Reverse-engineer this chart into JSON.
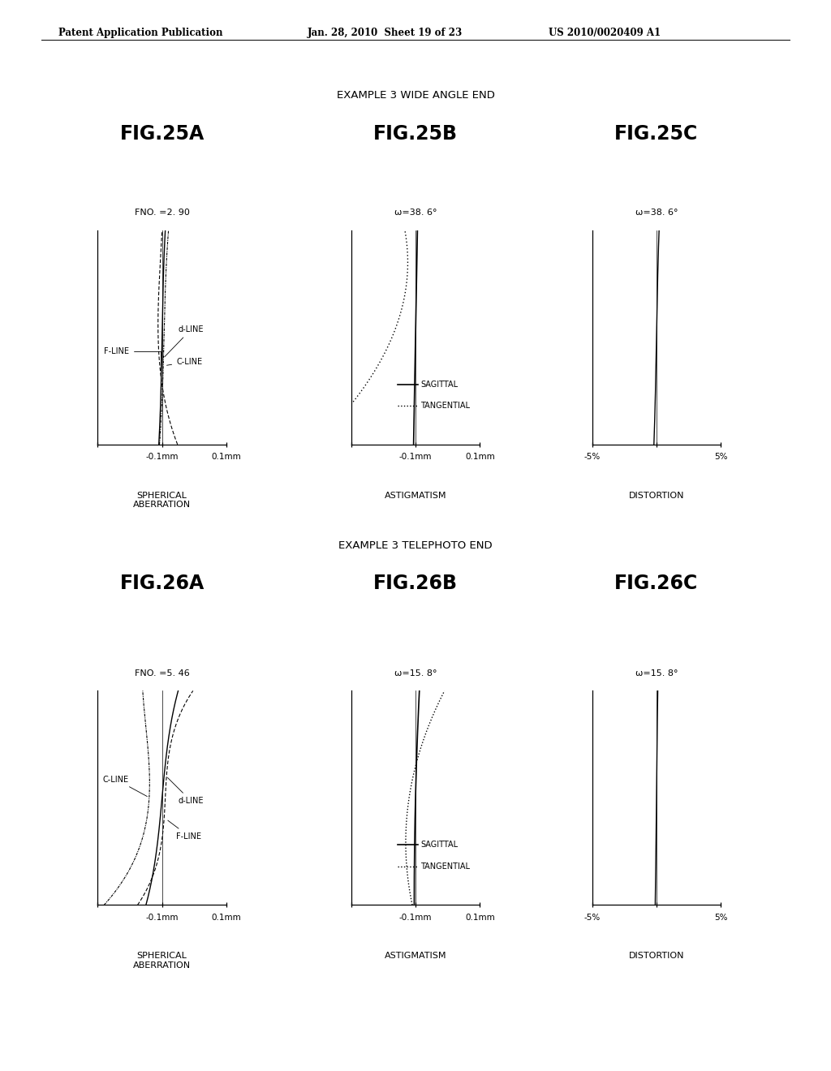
{
  "header_left": "Patent Application Publication",
  "header_mid": "Jan. 28, 2010  Sheet 19 of 23",
  "header_right": "US 2010/0020409 A1",
  "section1_title": "EXAMPLE 3 WIDE ANGLE END",
  "section2_title": "EXAMPLE 3 TELEPHOTO END",
  "fig25a_title": "FIG.25A",
  "fig25b_title": "FIG.25B",
  "fig25c_title": "FIG.25C",
  "fig26a_title": "FIG.26A",
  "fig26b_title": "FIG.26B",
  "fig26c_title": "FIG.26C",
  "fno_25": "FNO. =2. 90",
  "fno_26": "FNO. =5. 46",
  "omega_25bc": "ω=38. 6°",
  "omega_26bc": "ω=15. 8°",
  "label_spherical": "SPHERICAL\nABERRATION",
  "label_astigmatism": "ASTIGMATISM",
  "label_distortion": "DISTORTION",
  "label_sagittal": "SAGITTAL",
  "label_tangential": "TANGENTIAL",
  "background": "#ffffff"
}
